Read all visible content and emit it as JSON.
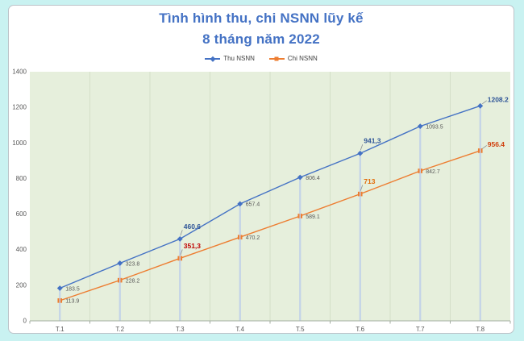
{
  "window": {
    "background": "#c9f2f1",
    "card_background": "#ffffff",
    "card_border": "#bcc3c9"
  },
  "title": {
    "line1": "Tình hình thu, chi NSNN lũy kế",
    "line2": "8 tháng năm 2022",
    "color": "#4472c4"
  },
  "legend": {
    "position": "top",
    "items": [
      {
        "label": "Thu NSNN",
        "color": "#4472c4",
        "marker": "diamond"
      },
      {
        "label": "Chi NSNN",
        "color": "#ed7d31",
        "marker": "square"
      }
    ]
  },
  "chart_data": {
    "type": "line",
    "title": "Tình hình thu, chi NSNN lũy kế 8 tháng năm 2022",
    "xlabel": "",
    "ylabel": "",
    "categories": [
      "T.1",
      "T.2",
      "T.3",
      "T.4",
      "T.5",
      "T.6",
      "T.7",
      "T.8"
    ],
    "series": [
      {
        "name": "Thu NSNN",
        "color": "#4472c4",
        "marker": "diamond",
        "values": [
          183.5,
          323.8,
          460.6,
          657.4,
          806.4,
          941.3,
          1093.5,
          1208.2
        ],
        "point_labels": [
          {
            "text": "183.5",
            "pos": "right",
            "bold": false
          },
          {
            "text": "323.8",
            "pos": "right",
            "bold": false
          },
          {
            "text": "460.6",
            "pos": "above",
            "bold": true,
            "color": "#2f5597"
          },
          {
            "text": "657.4",
            "pos": "right",
            "bold": false
          },
          {
            "text": "806.4",
            "pos": "right",
            "bold": false
          },
          {
            "text": "941,3",
            "pos": "above",
            "bold": true,
            "color": "#2f5597"
          },
          {
            "text": "1093.5",
            "pos": "right",
            "bold": false
          },
          {
            "text": "1208.2",
            "pos": "above-right",
            "bold": true,
            "color": "#2f5597"
          }
        ]
      },
      {
        "name": "Chi NSNN",
        "color": "#ed7d31",
        "marker": "square",
        "values": [
          113.9,
          228.2,
          351.3,
          470.2,
          589.1,
          713,
          842.7,
          956.4
        ],
        "point_labels": [
          {
            "text": "113.9",
            "pos": "right",
            "bold": false
          },
          {
            "text": "228.2",
            "pos": "right",
            "bold": false
          },
          {
            "text": "351,3",
            "pos": "above",
            "bold": true,
            "color": "#c00000"
          },
          {
            "text": "470.2",
            "pos": "right",
            "bold": false
          },
          {
            "text": "589.1",
            "pos": "right",
            "bold": false
          },
          {
            "text": "713",
            "pos": "above",
            "bold": true,
            "color": "#e36c09"
          },
          {
            "text": "842.7",
            "pos": "right",
            "bold": false
          },
          {
            "text": "956.4",
            "pos": "above-right",
            "bold": true,
            "color": "#d03d0a"
          }
        ]
      }
    ],
    "ylim": [
      0,
      1400
    ],
    "yticks": [
      0,
      200,
      400,
      600,
      800,
      1000,
      1200,
      1400
    ],
    "grid": "vertical-category-boundaries",
    "legend_position": "top",
    "plot_background": "#e6efdc",
    "gridline_color": "#d4dfc8",
    "dropline_color": "#c3d3e8",
    "axis_color": "#a3aca0",
    "tick_label_color": "#595959",
    "data_label_color": "#595959",
    "leader_line_color": "#8a8f94"
  }
}
